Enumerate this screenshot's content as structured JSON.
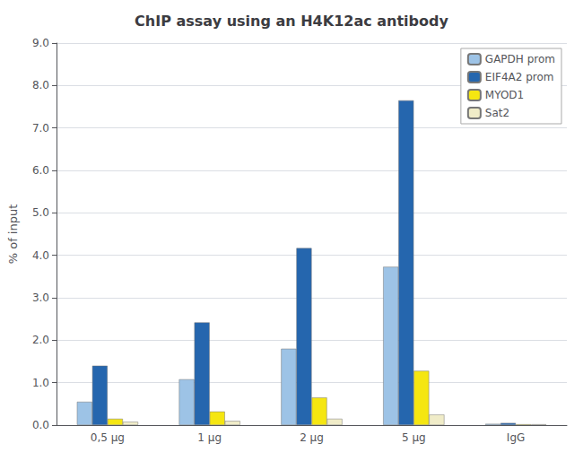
{
  "chart_data": {
    "type": "bar",
    "title": "ChIP assay using an H4K12ac antibody",
    "ylabel": "% of input",
    "categories": [
      "0,5 μg",
      "1 μg",
      "2 μg",
      "5 μg",
      "IgG"
    ],
    "series": [
      {
        "name": "GAPDH prom",
        "color": "#9DC3E6",
        "values": [
          0.55,
          1.08,
          1.8,
          3.73,
          0.03
        ]
      },
      {
        "name": "EIF4A2 prom",
        "color": "#2566AE",
        "values": [
          1.4,
          2.42,
          4.17,
          7.65,
          0.05
        ]
      },
      {
        "name": "MYOD1",
        "color": "#F5E611",
        "values": [
          0.15,
          0.32,
          0.65,
          1.28,
          0.02
        ]
      },
      {
        "name": "Sat2",
        "color": "#F0ECC8",
        "values": [
          0.08,
          0.1,
          0.15,
          0.25,
          0.02
        ]
      }
    ],
    "ylim": [
      0,
      9.0
    ],
    "yticks": [
      {
        "value": 0,
        "label": "0.0"
      },
      {
        "value": 1,
        "label": "1.0"
      },
      {
        "value": 2,
        "label": "2.0"
      },
      {
        "value": 3,
        "label": "3.0"
      },
      {
        "value": 4,
        "label": "4.0"
      },
      {
        "value": 5,
        "label": "5.0"
      },
      {
        "value": 6,
        "label": "6.0"
      },
      {
        "value": 7,
        "label": "7.0"
      },
      {
        "value": 8,
        "label": "8.0"
      },
      {
        "value": 9,
        "label": "9.0"
      }
    ],
    "grid": true,
    "legend": "upper right"
  }
}
